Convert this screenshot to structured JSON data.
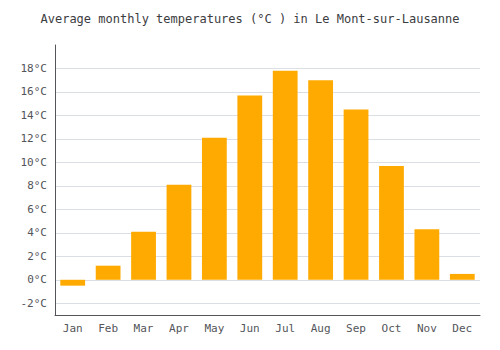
{
  "chart_data": {
    "type": "bar",
    "title": "Average monthly temperatures (°C ) in Le Mont-sur-Lausanne",
    "categories": [
      "Jan",
      "Feb",
      "Mar",
      "Apr",
      "May",
      "Jun",
      "Jul",
      "Aug",
      "Sep",
      "Oct",
      "Nov",
      "Dec"
    ],
    "values": [
      -0.5,
      1.2,
      4.1,
      8.1,
      12.1,
      15.7,
      17.8,
      17.0,
      14.5,
      9.7,
      4.3,
      0.5
    ],
    "color": "#FFAA00",
    "ylim": [
      -3,
      20
    ],
    "yticks": [
      {
        "value": -2,
        "label": "-2°C"
      },
      {
        "value": 0,
        "label": "0°C"
      },
      {
        "value": 2,
        "label": "2°C"
      },
      {
        "value": 4,
        "label": "4°C"
      },
      {
        "value": 6,
        "label": "6°C"
      },
      {
        "value": 8,
        "label": "8°C"
      },
      {
        "value": 10,
        "label": "10°C"
      },
      {
        "value": 12,
        "label": "12°C"
      },
      {
        "value": 14,
        "label": "14°C"
      },
      {
        "value": 16,
        "label": "16°C"
      },
      {
        "value": 18,
        "label": "18°C"
      }
    ],
    "grid": true
  }
}
